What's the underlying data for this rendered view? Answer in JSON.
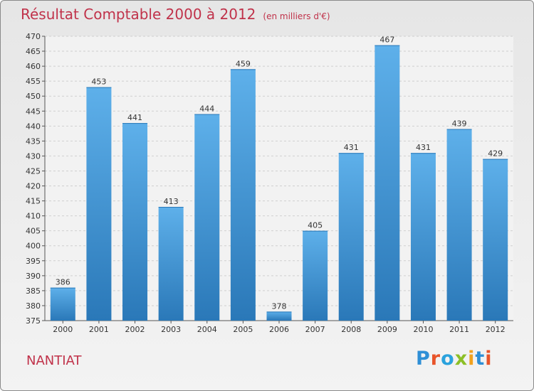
{
  "header": {
    "title": "Résultat Comptable 2000 à 2012",
    "unit": "(en milliers d'€)"
  },
  "footer": {
    "commune": "NANTIAT",
    "logo": "Proxiti"
  },
  "colors": {
    "title": "#c0324a",
    "bar_top": "#5eb0ea",
    "bar_bottom": "#2a78b8"
  },
  "chart_data": {
    "type": "bar",
    "title": "Résultat Comptable 2000 à 2012",
    "subtitle": "(en milliers d'€)",
    "categories": [
      "2000",
      "2001",
      "2002",
      "2003",
      "2004",
      "2005",
      "2006",
      "2007",
      "2008",
      "2009",
      "2010",
      "2011",
      "2012"
    ],
    "values": [
      386,
      453,
      441,
      413,
      444,
      459,
      378,
      405,
      431,
      467,
      431,
      439,
      429
    ],
    "ylim": [
      375,
      470
    ],
    "yticks": [
      375,
      380,
      385,
      390,
      395,
      400,
      405,
      410,
      415,
      420,
      425,
      430,
      435,
      440,
      445,
      450,
      455,
      460,
      465,
      470
    ],
    "grid": true,
    "legend": "none"
  }
}
